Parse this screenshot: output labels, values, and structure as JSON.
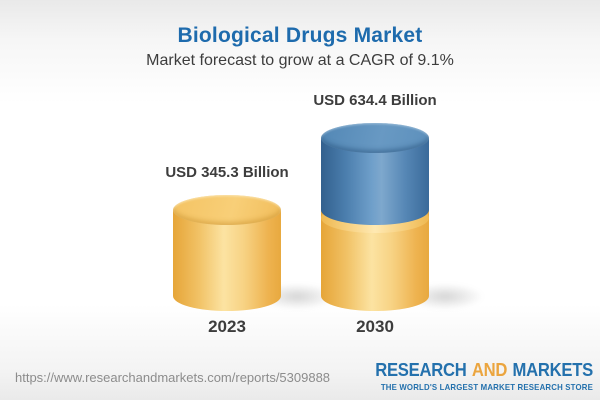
{
  "header": {
    "title": "Biological Drugs Market",
    "subtitle": "Market forecast to grow at a CAGR of 9.1%"
  },
  "chart_data": {
    "type": "bar",
    "variant": "3d-cylinder",
    "title": "Biological Drugs Market",
    "subtitle": "Market forecast to grow at a CAGR of 9.1%",
    "cagr_percent": 9.1,
    "unit": "USD Billion",
    "categories": [
      "2023",
      "2030"
    ],
    "values": [
      345.3,
      634.4
    ],
    "bars": [
      {
        "category": "2023",
        "value": 345.3,
        "label": "USD 345.3 Billion",
        "segments": [
          {
            "name": "base",
            "color_key": "gold",
            "value": 345.3
          }
        ]
      },
      {
        "category": "2030",
        "value": 634.4,
        "label": "USD 634.4 Billion",
        "segments": [
          {
            "name": "base",
            "color_key": "gold",
            "value": 345.3
          },
          {
            "name": "growth",
            "color_key": "blue",
            "value": 289.1
          }
        ]
      }
    ],
    "legend": [],
    "grid": false,
    "axis_labels_shown": false
  },
  "footer": {
    "url": "https://www.researchandmarkets.com/reports/5309888",
    "logo": {
      "part1": "RESEARCH",
      "part2": "AND",
      "part3": "MARKETS",
      "tagline": "THE WORLD'S LARGEST MARKET RESEARCH STORE"
    }
  },
  "colors": {
    "title_blue": "#1e6bad",
    "text_dark": "#3d3d3d",
    "url_gray": "#8c8c8c",
    "bar_gold": "#f2c465",
    "bar_blue": "#5687b5",
    "logo_blue": "#2471ad",
    "logo_orange": "#eba53f"
  }
}
